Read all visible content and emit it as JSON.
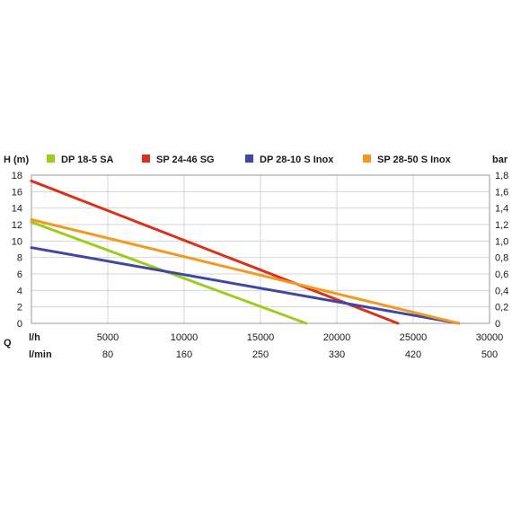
{
  "chart_data": {
    "type": "line",
    "y_left_label": "H (m)",
    "y_right_label": "bar",
    "y_left_ticks": [
      "0",
      "2",
      "4",
      "6",
      "8",
      "10",
      "12",
      "14",
      "16",
      "18"
    ],
    "y_right_ticks": [
      "0",
      "0,2",
      "0,4",
      "0,6",
      "0,8",
      "1,0",
      "1,2",
      "1,4",
      "1,6",
      "1,8"
    ],
    "ylim": [
      0,
      18
    ],
    "x_axis_label": "Q",
    "x_primary_unit": "l/h",
    "x_primary_ticks": [
      "5000",
      "10000",
      "15000",
      "20000",
      "25000",
      "30000"
    ],
    "x_primary_tick_values": [
      5000,
      10000,
      15000,
      20000,
      25000,
      30000
    ],
    "x_secondary_unit": "l/min",
    "x_secondary_ticks": [
      "80",
      "160",
      "250",
      "330",
      "420",
      "500"
    ],
    "xlim": [
      0,
      30000
    ],
    "grid": true,
    "legend_placement": "top",
    "series": [
      {
        "name": "DP 18-5 SA",
        "color": "#9ccc1e",
        "x": [
          0,
          18000
        ],
        "y": [
          12.3,
          0
        ]
      },
      {
        "name": "SP 24-46 SG",
        "color": "#d8321a",
        "x": [
          0,
          24000
        ],
        "y": [
          17.3,
          0
        ]
      },
      {
        "name": "DP 28-10 S Inox",
        "color": "#3d47a6",
        "x": [
          0,
          28000
        ],
        "y": [
          9.2,
          0
        ]
      },
      {
        "name": "SP 28-50 S Inox",
        "color": "#f29a1f",
        "x": [
          0,
          28000
        ],
        "y": [
          12.6,
          0
        ]
      }
    ]
  }
}
